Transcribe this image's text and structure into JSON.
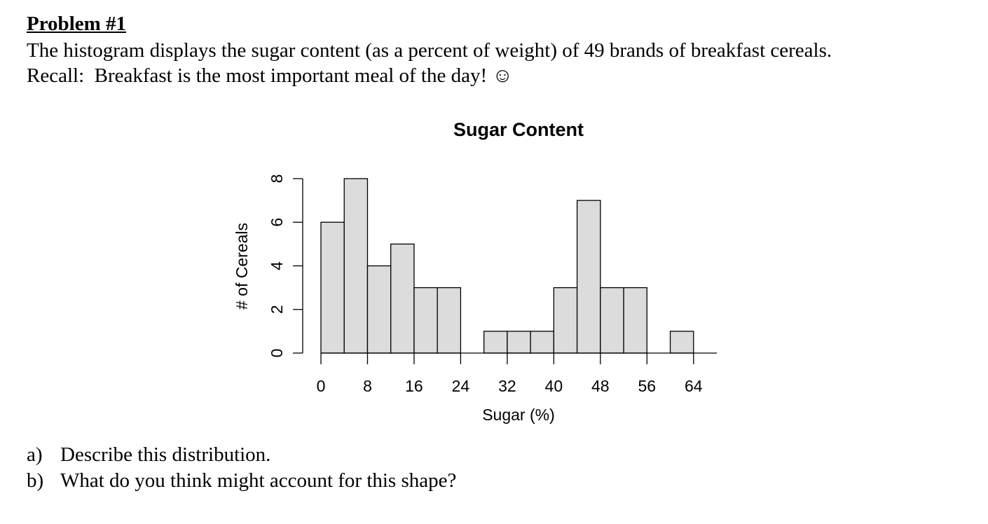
{
  "header": {
    "title": "Problem #1"
  },
  "intro": [
    "The histogram displays the sugar content (as a percent of weight) of 49 brands of breakfast cereals.",
    "Recall:  Breakfast is the most important meal of the day! ☺"
  ],
  "chart_data": {
    "type": "histogram",
    "title": "Sugar Content",
    "x_label": "Sugar (%)",
    "y_label": "# of Cereals",
    "bins": [
      0,
      4,
      8,
      12,
      16,
      20,
      24,
      28,
      32,
      36,
      40,
      44,
      48,
      52,
      56,
      60,
      64,
      68
    ],
    "values": [
      6,
      8,
      4,
      5,
      3,
      3,
      0,
      1,
      1,
      1,
      3,
      7,
      3,
      3,
      0,
      1,
      0
    ],
    "color": "#dcdcdc",
    "xlim": [
      0,
      68
    ],
    "xticks": [
      0,
      8,
      16,
      24,
      32,
      40,
      48,
      56,
      64
    ],
    "ylim": [
      0,
      8
    ],
    "yticks": [
      0,
      2,
      4,
      6,
      8
    ]
  },
  "questions": [
    {
      "label": "a)",
      "text": "Describe this distribution."
    },
    {
      "label": "b)",
      "text": "What do you think might account for this shape?"
    }
  ]
}
